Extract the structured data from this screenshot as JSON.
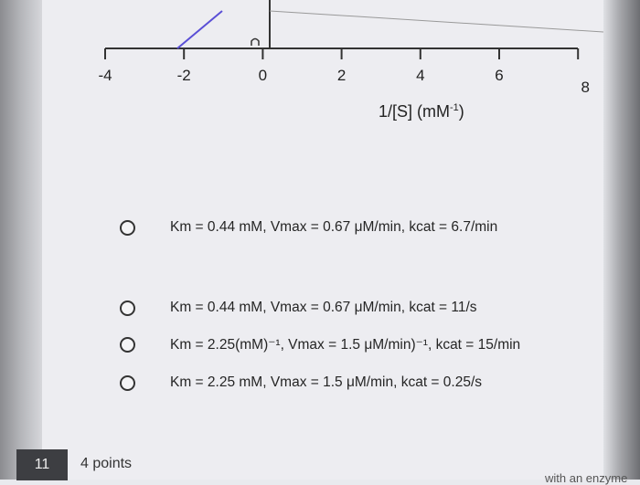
{
  "graph": {
    "x_axis_label": "1/[S] (mM",
    "x_axis_label_exp": "-1",
    "x_axis_label_close": ")",
    "tick_labels": [
      "-4",
      "-2",
      "0",
      "2",
      "4",
      "6",
      "8"
    ]
  },
  "question": {
    "options": [
      {
        "text": "Km = 0.44 mM, Vmax = 0.67 μM/min, kcat = 6.7/min",
        "selected": false
      },
      {
        "text": "Km = 0.44 mM, Vmax = 0.67 μM/min, kcat = 11/s",
        "selected": false
      },
      {
        "text": "Km = 2.25(mM)⁻¹, Vmax = 1.5 μM/min)⁻¹, kcat = 15/min",
        "selected": false
      },
      {
        "text": "Km = 2.25 mM, Vmax = 1.5 μM/min, kcat = 0.25/s",
        "selected": false
      }
    ]
  },
  "next_question": {
    "number": "11",
    "points": "4 points",
    "cut_text": "with an enzyme"
  },
  "colors": {
    "line": "#5a4fd6",
    "axis": "#333333"
  }
}
